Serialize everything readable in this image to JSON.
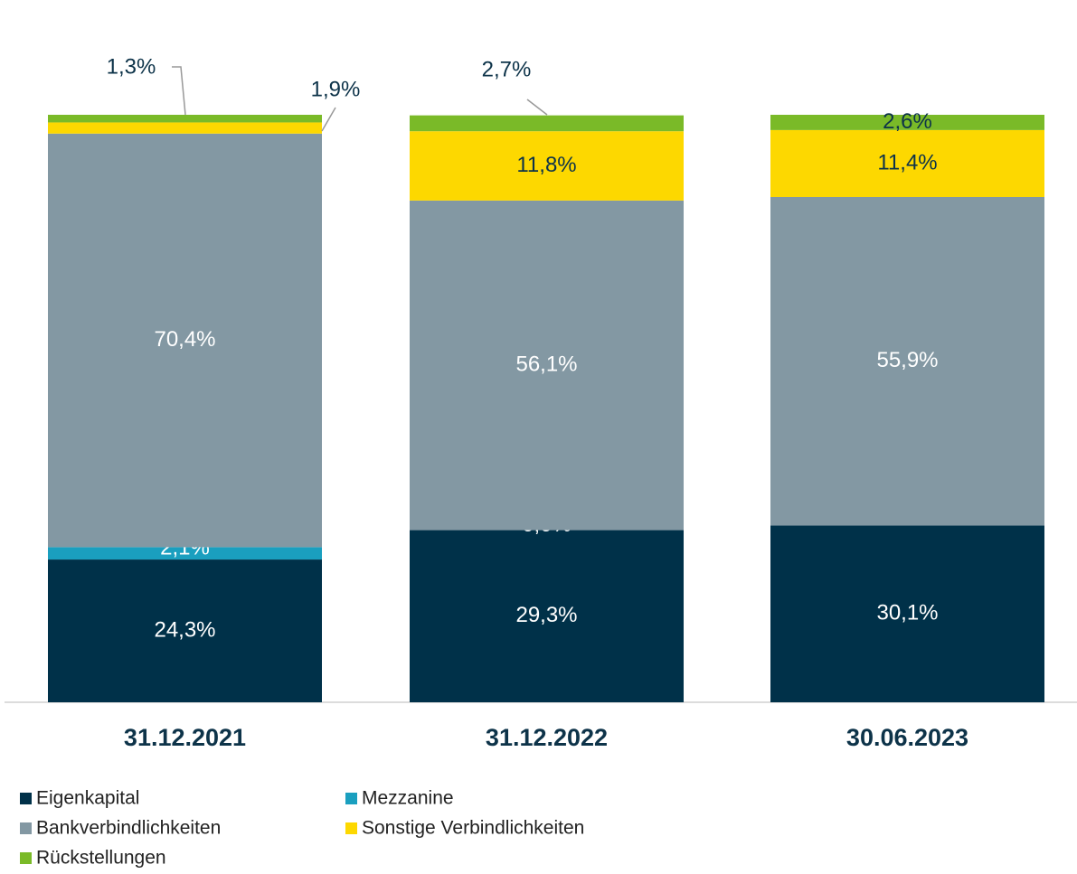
{
  "chart_data": {
    "type": "stacked_bar",
    "categories": [
      "31.12.2021",
      "31.12.2022",
      "30.06.2023"
    ],
    "series": [
      {
        "name": "Eigenkapital",
        "color": "#003149",
        "values": [
          24.3,
          29.3,
          30.1
        ],
        "value_labels": [
          "24,3%",
          "29,3%",
          "30,1%"
        ]
      },
      {
        "name": "Mezzanine",
        "color": "#1a9fbf",
        "values": [
          2.1,
          0.0,
          null
        ],
        "value_labels": [
          "2,1%",
          "0,0%",
          null
        ]
      },
      {
        "name": "Bankverbindlichkeiten",
        "color": "#8398a3",
        "values": [
          70.4,
          56.1,
          55.9
        ],
        "value_labels": [
          "70,4%",
          "56,1%",
          "55,9%"
        ]
      },
      {
        "name": "Sonstige Verbindlichkeiten",
        "color": "#fdd800",
        "values": [
          1.9,
          11.8,
          11.4
        ],
        "value_labels": [
          "1,9%",
          "11,8%",
          "11,4%"
        ]
      },
      {
        "name": "Rückstellungen",
        "color": "#7aba28",
        "values": [
          1.3,
          2.7,
          2.6
        ],
        "value_labels": [
          "1,3%",
          "2,7%",
          "2,6%"
        ]
      }
    ],
    "legend": "bottom-left"
  }
}
